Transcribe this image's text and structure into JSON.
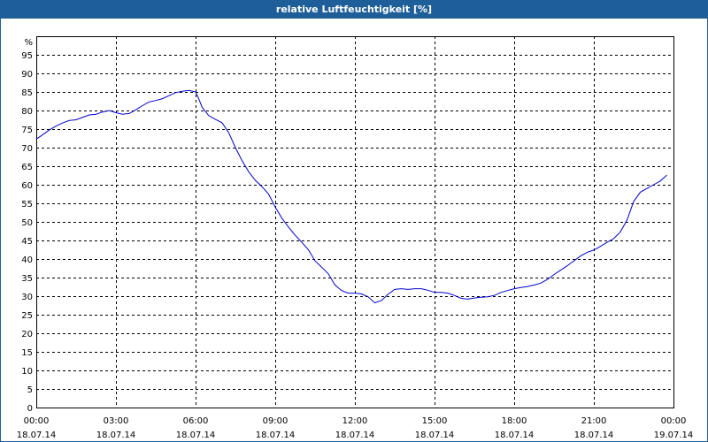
{
  "window": {
    "title": "relative Luftfeuchtigkeit [%]"
  },
  "chart_data": {
    "type": "line",
    "title": "relative Luftfeuchtigkeit [%]",
    "ylabel": "%",
    "xlabel": "",
    "ylim": [
      0,
      100
    ],
    "xlim": [
      0,
      24
    ],
    "x_unit": "hours since 18.07.14 00:00",
    "y_ticks": [
      0,
      5,
      10,
      15,
      20,
      25,
      30,
      35,
      40,
      45,
      50,
      55,
      60,
      65,
      70,
      75,
      80,
      85,
      90,
      95
    ],
    "x_ticks": [
      {
        "time": "00:00",
        "date": "18.07.14"
      },
      {
        "time": "03:00",
        "date": "18.07.14"
      },
      {
        "time": "06:00",
        "date": "18.07.14"
      },
      {
        "time": "09:00",
        "date": "18.07.14"
      },
      {
        "time": "12:00",
        "date": "18.07.14"
      },
      {
        "time": "15:00",
        "date": "18.07.14"
      },
      {
        "time": "18:00",
        "date": "18.07.14"
      },
      {
        "time": "21:00",
        "date": "18.07.14"
      },
      {
        "time": "00:00",
        "date": "19.07.14"
      }
    ],
    "grid": true,
    "grid_style": "dashed",
    "line_color": "#0000cc",
    "series": [
      {
        "values": [
          [
            0,
            72.3
          ],
          [
            0.25,
            73.5
          ],
          [
            0.5,
            74.8
          ],
          [
            0.75,
            75.8
          ],
          [
            1.0,
            76.7
          ],
          [
            1.25,
            77.3
          ],
          [
            1.5,
            77.5
          ],
          [
            1.75,
            78.2
          ],
          [
            2.0,
            78.8
          ],
          [
            2.25,
            79.0
          ],
          [
            2.5,
            79.6
          ],
          [
            2.75,
            80.0
          ],
          [
            3.0,
            79.4
          ],
          [
            3.25,
            79.0
          ],
          [
            3.5,
            79.2
          ],
          [
            3.75,
            80.2
          ],
          [
            4.0,
            81.3
          ],
          [
            4.25,
            82.3
          ],
          [
            4.5,
            82.7
          ],
          [
            4.75,
            83.2
          ],
          [
            5.0,
            84.0
          ],
          [
            5.25,
            84.8
          ],
          [
            5.5,
            85.2
          ],
          [
            5.75,
            85.4
          ],
          [
            6.0,
            85.0
          ],
          [
            6.1,
            83.5
          ],
          [
            6.25,
            80.8
          ],
          [
            6.5,
            78.6
          ],
          [
            6.75,
            77.6
          ],
          [
            7.0,
            76.7
          ],
          [
            7.25,
            74.0
          ],
          [
            7.5,
            70.0
          ],
          [
            7.75,
            66.5
          ],
          [
            8.0,
            63.5
          ],
          [
            8.25,
            61.2
          ],
          [
            8.5,
            59.5
          ],
          [
            8.75,
            57.5
          ],
          [
            9.0,
            54.0
          ],
          [
            9.25,
            51.0
          ],
          [
            9.5,
            48.6
          ],
          [
            9.75,
            46.4
          ],
          [
            10.0,
            44.5
          ],
          [
            10.25,
            42.5
          ],
          [
            10.5,
            39.5
          ],
          [
            10.75,
            37.8
          ],
          [
            11.0,
            36.0
          ],
          [
            11.25,
            33.0
          ],
          [
            11.5,
            31.5
          ],
          [
            11.75,
            30.8
          ],
          [
            12.0,
            30.8
          ],
          [
            12.25,
            30.6
          ],
          [
            12.5,
            29.8
          ],
          [
            12.75,
            28.2
          ],
          [
            13.0,
            28.8
          ],
          [
            13.25,
            30.5
          ],
          [
            13.5,
            31.8
          ],
          [
            13.75,
            32.0
          ],
          [
            14.0,
            31.8
          ],
          [
            14.25,
            32.0
          ],
          [
            14.5,
            32.0
          ],
          [
            14.75,
            31.6
          ],
          [
            15.0,
            31.0
          ],
          [
            15.25,
            31.0
          ],
          [
            15.5,
            30.8
          ],
          [
            15.75,
            30.2
          ],
          [
            16.0,
            29.4
          ],
          [
            16.25,
            29.2
          ],
          [
            16.5,
            29.5
          ],
          [
            16.75,
            29.7
          ],
          [
            17.0,
            29.8
          ],
          [
            17.25,
            30.2
          ],
          [
            17.5,
            31.0
          ],
          [
            17.75,
            31.5
          ],
          [
            18.0,
            32.0
          ],
          [
            18.25,
            32.3
          ],
          [
            18.5,
            32.6
          ],
          [
            18.75,
            33.0
          ],
          [
            19.0,
            33.5
          ],
          [
            19.25,
            34.5
          ],
          [
            19.5,
            35.8
          ],
          [
            19.75,
            37.0
          ],
          [
            20.0,
            38.2
          ],
          [
            20.25,
            39.5
          ],
          [
            20.5,
            40.8
          ],
          [
            20.75,
            41.8
          ],
          [
            21.0,
            42.4
          ],
          [
            21.25,
            43.4
          ],
          [
            21.5,
            44.5
          ],
          [
            21.75,
            45.5
          ],
          [
            22.0,
            47.3
          ],
          [
            22.25,
            50.5
          ],
          [
            22.5,
            55.5
          ],
          [
            22.75,
            58.0
          ],
          [
            23.0,
            59.0
          ],
          [
            23.25,
            60.0
          ],
          [
            23.5,
            61.0
          ],
          [
            23.75,
            62.6
          ]
        ]
      }
    ]
  }
}
